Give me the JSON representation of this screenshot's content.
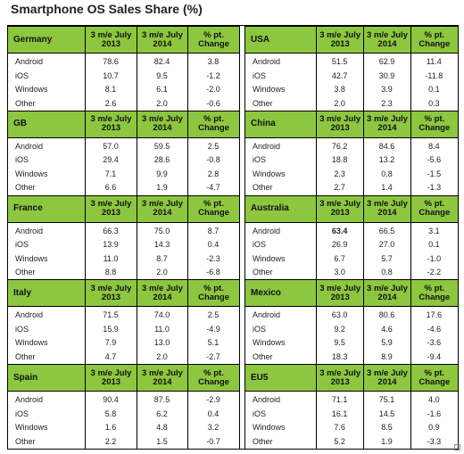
{
  "title": "Smartphone OS Sales Share (%)",
  "headers": {
    "col1": "3 m/e July 2013",
    "col2": "3 m/e July 2014",
    "col3": "% pt. Change"
  },
  "chart_data": {
    "type": "table",
    "columns": [
      "3 m/e July 2013",
      "3 m/e July 2014",
      "% pt. Change"
    ],
    "os": [
      "Android",
      "iOS",
      "Windows",
      "Other"
    ],
    "markets": [
      {
        "name": "Germany",
        "rows": [
          [
            "Android",
            "78.6",
            "82.4",
            "3.8"
          ],
          [
            "iOS",
            "10.7",
            "9.5",
            "-1.2"
          ],
          [
            "Windows",
            "8.1",
            "6.1",
            "-2.0"
          ],
          [
            "Other",
            "2.6",
            "2.0",
            "-0.6"
          ]
        ]
      },
      {
        "name": "USA",
        "rows": [
          [
            "Android",
            "51.5",
            "62.9",
            "11.4"
          ],
          [
            "iOS",
            "42.7",
            "30.9",
            "-11.8"
          ],
          [
            "Windows",
            "3.8",
            "3.9",
            "0.1"
          ],
          [
            "Other",
            "2.0",
            "2.3",
            "0.3"
          ]
        ]
      },
      {
        "name": "GB",
        "rows": [
          [
            "Android",
            "57.0",
            "59.5",
            "2.5"
          ],
          [
            "iOS",
            "29.4",
            "28.6",
            "-0.8"
          ],
          [
            "Windows",
            "7.1",
            "9.9",
            "2.8"
          ],
          [
            "Other",
            "6.6",
            "1.9",
            "-4.7"
          ]
        ]
      },
      {
        "name": "China",
        "rows": [
          [
            "Android",
            "76.2",
            "84.6",
            "8.4"
          ],
          [
            "iOS",
            "18.8",
            "13.2",
            "-5.6"
          ],
          [
            "Windows",
            "2.3",
            "0.8",
            "-1.5"
          ],
          [
            "Other",
            "2.7",
            "1.4",
            "-1.3"
          ]
        ]
      },
      {
        "name": "France",
        "rows": [
          [
            "Android",
            "66.3",
            "75.0",
            "8.7"
          ],
          [
            "iOS",
            "13.9",
            "14.3",
            "0.4"
          ],
          [
            "Windows",
            "11.0",
            "8.7",
            "-2.3"
          ],
          [
            "Other",
            "8.8",
            "2.0",
            "-6.8"
          ]
        ]
      },
      {
        "name": "Australia",
        "rows": [
          [
            "Android",
            "63.4",
            "66.5",
            "3.1"
          ],
          [
            "iOS",
            "26.9",
            "27.0",
            "0.1"
          ],
          [
            "Windows",
            "6.7",
            "5.7",
            "-1.0"
          ],
          [
            "Other",
            "3.0",
            "0.8",
            "-2.2"
          ]
        ]
      },
      {
        "name": "Italy",
        "rows": [
          [
            "Android",
            "71.5",
            "74.0",
            "2.5"
          ],
          [
            "iOS",
            "15.9",
            "11.0",
            "-4.9"
          ],
          [
            "Windows",
            "7.9",
            "13.0",
            "5.1"
          ],
          [
            "Other",
            "4.7",
            "2.0",
            "-2.7"
          ]
        ]
      },
      {
        "name": "Mexico",
        "rows": [
          [
            "Android",
            "63.0",
            "80.6",
            "17.6"
          ],
          [
            "iOS",
            "9.2",
            "4.6",
            "-4.6"
          ],
          [
            "Windows",
            "9.5",
            "5.9",
            "-3.6"
          ],
          [
            "Other",
            "18.3",
            "8.9",
            "-9.4"
          ]
        ]
      },
      {
        "name": "Spain",
        "rows": [
          [
            "Android",
            "90.4",
            "87.5",
            "-2.9"
          ],
          [
            "iOS",
            "5.8",
            "6.2",
            "0.4"
          ],
          [
            "Windows",
            "1.6",
            "4.8",
            "3.2"
          ],
          [
            "Other",
            "2.2",
            "1.5",
            "-0.7"
          ]
        ]
      },
      {
        "name": "EU5",
        "rows": [
          [
            "Android",
            "71.1",
            "75.1",
            "4.0"
          ],
          [
            "iOS",
            "16.1",
            "14.5",
            "-1.6"
          ],
          [
            "Windows",
            "7.6",
            "8.5",
            "0.9"
          ],
          [
            "Other",
            "5.2",
            "1.9",
            "-3.3"
          ]
        ]
      }
    ],
    "bold_cells": [
      {
        "market": "Australia",
        "row": 0,
        "col": 1
      }
    ]
  },
  "colors": {
    "header_bg": "#8dc63f",
    "border": "#000000"
  }
}
